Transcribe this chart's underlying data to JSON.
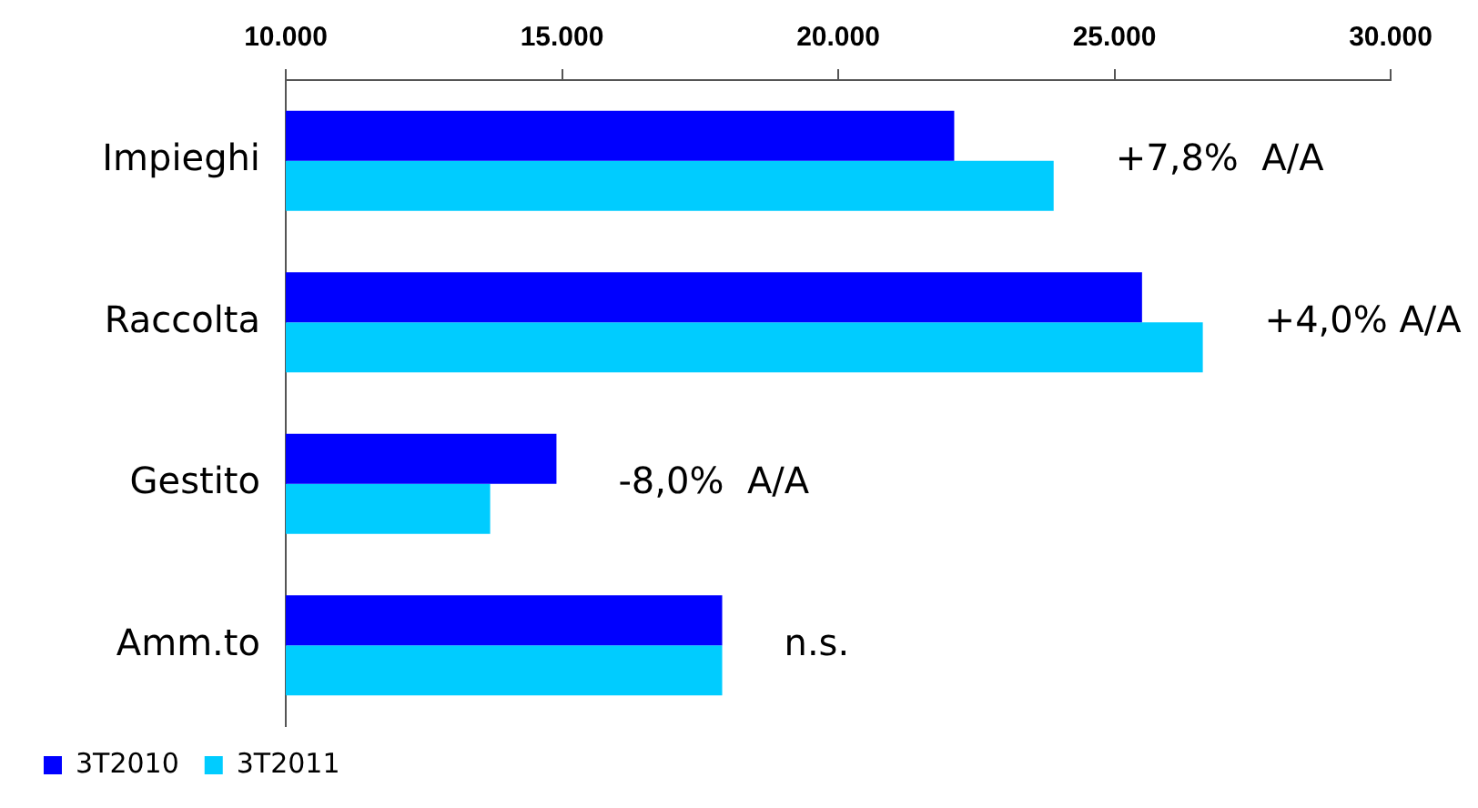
{
  "chart_data": {
    "type": "bar",
    "orientation": "horizontal",
    "categories": [
      "Impieghi",
      "Raccolta",
      "Gestito",
      "Amm.to"
    ],
    "series": [
      {
        "name": "3T2010",
        "color": "#0000ff",
        "values": [
          22100,
          25500,
          14900,
          17900
        ]
      },
      {
        "name": "3T2011",
        "color": "#00ccff",
        "values": [
          23900,
          26600,
          13700,
          17900
        ]
      }
    ],
    "xlim": [
      10000,
      30000
    ],
    "xticks": [
      {
        "value": 10000,
        "label": "10.000"
      },
      {
        "value": 15000,
        "label": "15.000"
      },
      {
        "value": 20000,
        "label": "20.000"
      },
      {
        "value": 25000,
        "label": "25.000"
      },
      {
        "value": 30000,
        "label": "30.000"
      }
    ],
    "annotations": [
      "+7,8%  A/A",
      "+4,0% A/A",
      "-8,0%  A/A",
      "n.s."
    ],
    "grid": false,
    "legend": "bottom left"
  }
}
